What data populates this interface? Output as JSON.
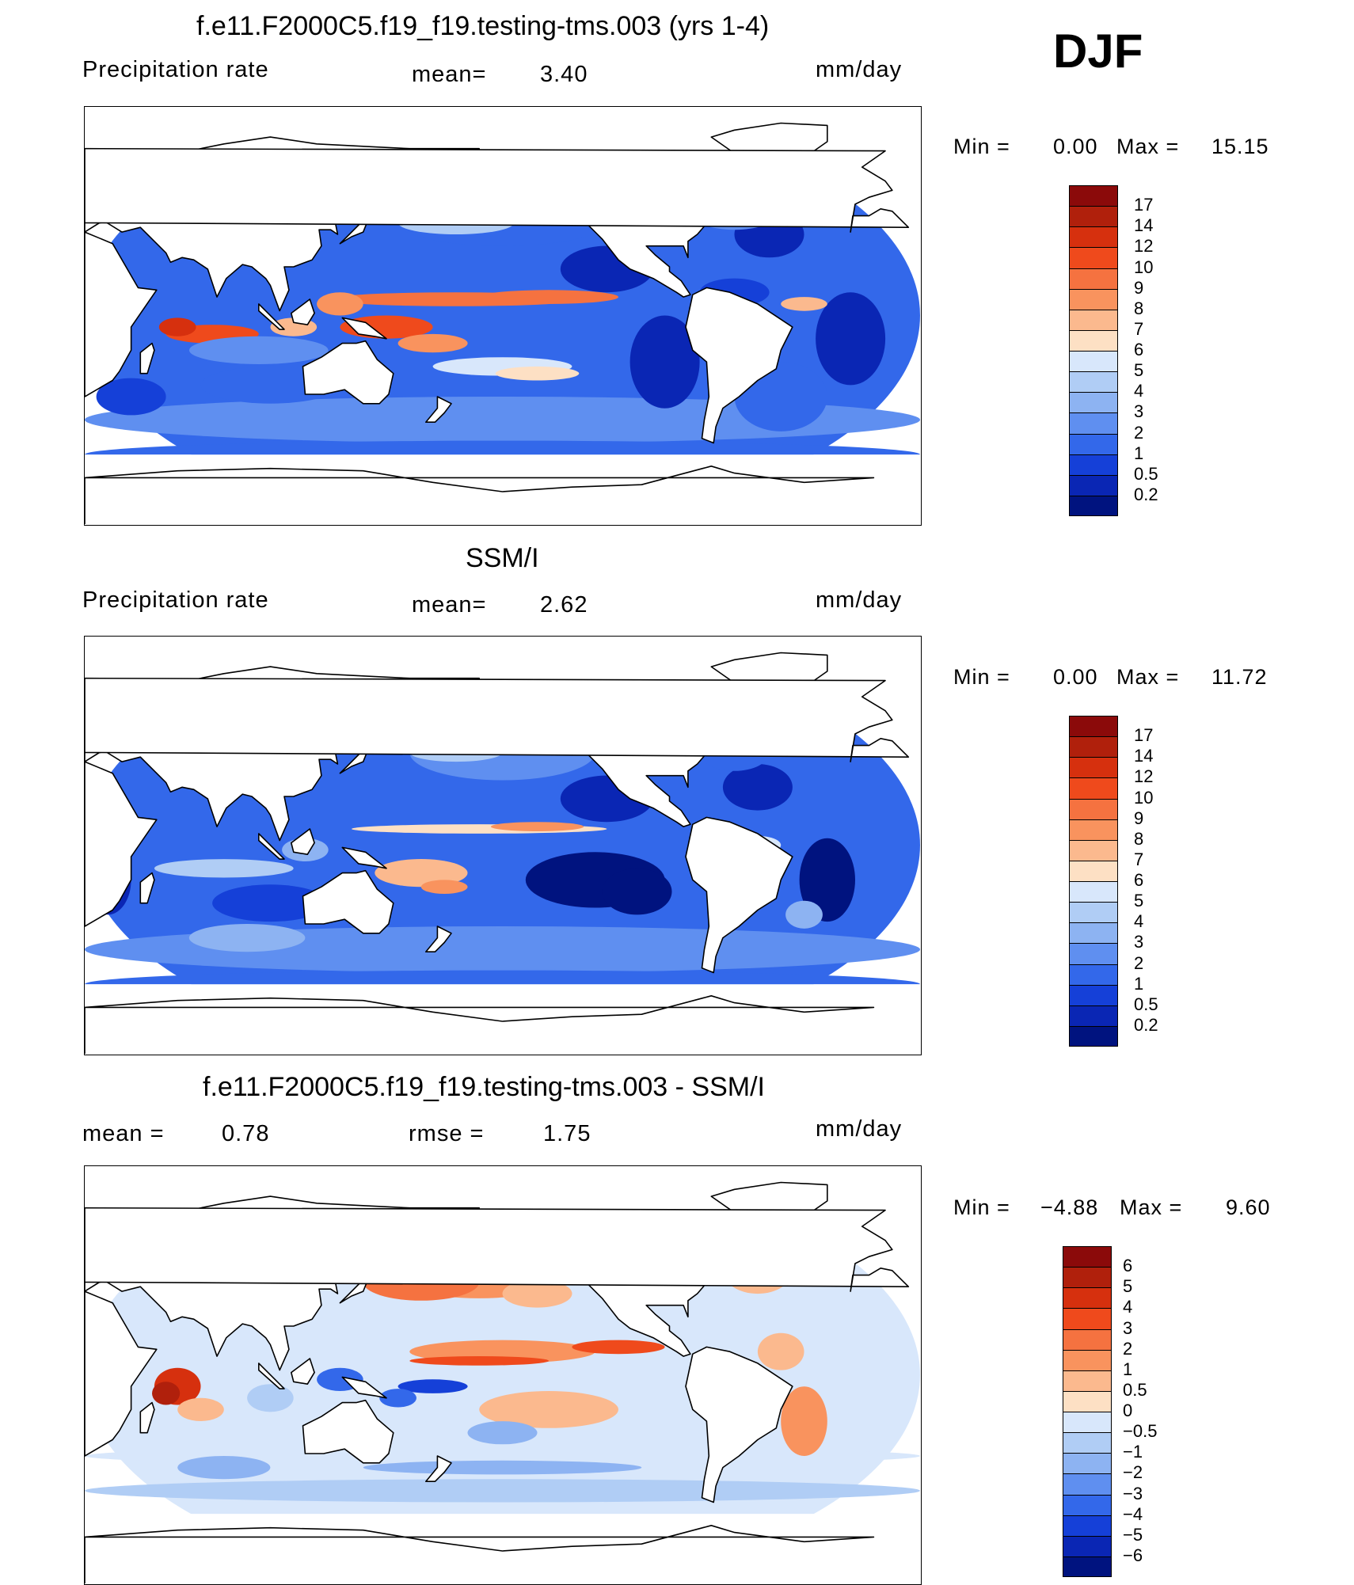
{
  "header": {
    "season": "DJF"
  },
  "panels": [
    {
      "title": "f.e11.F2000C5.f19_f19.testing-tms.003 (yrs 1-4)",
      "left_label": "Precipitation  rate",
      "mid_label": "mean=",
      "mid_value": "3.40",
      "units": "mm/day",
      "min_label": "Min  =",
      "min_value": "0.00",
      "max_label": "Max  =",
      "max_value": "15.15",
      "colorbar": {
        "labels": [
          "17",
          "14",
          "12",
          "10",
          "9",
          "8",
          "7",
          "6",
          "5",
          "4",
          "3",
          "2",
          "1",
          "0.5",
          "0.2"
        ],
        "colors": [
          "#8b0a0a",
          "#b0200c",
          "#d6300e",
          "#ef4a1c",
          "#f57240",
          "#f9935e",
          "#fbb98e",
          "#fde0c4",
          "#d8e7fb",
          "#b0cdf5",
          "#8db3f2",
          "#5f8ff0",
          "#3368ea",
          "#1540d8",
          "#0a26b4",
          "#00137f"
        ]
      },
      "map_style": "model"
    },
    {
      "title": "SSM/I",
      "left_label": "Precipitation  rate",
      "mid_label": "mean=",
      "mid_value": "2.62",
      "units": "mm/day",
      "min_label": "Min  =",
      "min_value": "0.00",
      "max_label": "Max  =",
      "max_value": "11.72",
      "colorbar": {
        "labels": [
          "17",
          "14",
          "12",
          "10",
          "9",
          "8",
          "7",
          "6",
          "5",
          "4",
          "3",
          "2",
          "1",
          "0.5",
          "0.2"
        ],
        "colors": [
          "#8b0a0a",
          "#b0200c",
          "#d6300e",
          "#ef4a1c",
          "#f57240",
          "#f9935e",
          "#fbb98e",
          "#fde0c4",
          "#d8e7fb",
          "#b0cdf5",
          "#8db3f2",
          "#5f8ff0",
          "#3368ea",
          "#1540d8",
          "#0a26b4",
          "#00137f"
        ]
      },
      "map_style": "obs"
    },
    {
      "title": "f.e11.F2000C5.f19_f19.testing-tms.003 - SSM/I",
      "left_label": "mean  =",
      "left_value": "0.78",
      "mid_label": "rmse  =",
      "mid_value": "1.75",
      "units": "mm/day",
      "min_label": "Min  =",
      "min_value": "−4.88",
      "max_label": "Max  =",
      "max_value": "9.60",
      "colorbar": {
        "labels": [
          "6",
          "5",
          "4",
          "3",
          "2",
          "1",
          "0.5",
          "0",
          "−0.5",
          "−1",
          "−2",
          "−3",
          "−4",
          "−5",
          "−6"
        ],
        "colors": [
          "#8b0a0a",
          "#b0200c",
          "#d6300e",
          "#ef4a1c",
          "#f57240",
          "#f9935e",
          "#fbb98e",
          "#fde0c4",
          "#d8e7fb",
          "#b0cdf5",
          "#8db3f2",
          "#5f8ff0",
          "#3368ea",
          "#1540d8",
          "#0a26b4",
          "#00137f"
        ]
      },
      "map_style": "diff"
    }
  ],
  "chart_data": [
    {
      "type": "heatmap",
      "title": "f.e11.F2000C5.f19_f19.testing-tms.003 (yrs 1-4)",
      "variable": "Precipitation  rate",
      "units": "mm/day",
      "mean": 3.4,
      "min": 0.0,
      "max": 15.15,
      "contour_levels": [
        0.2,
        0.5,
        1,
        2,
        3,
        4,
        5,
        6,
        7,
        8,
        9,
        10,
        12,
        14,
        17
      ]
    },
    {
      "type": "heatmap",
      "title": "SSM/I",
      "variable": "Precipitation  rate",
      "units": "mm/day",
      "mean": 2.62,
      "min": 0.0,
      "max": 11.72,
      "contour_levels": [
        0.2,
        0.5,
        1,
        2,
        3,
        4,
        5,
        6,
        7,
        8,
        9,
        10,
        12,
        14,
        17
      ]
    },
    {
      "type": "heatmap",
      "title": "f.e11.F2000C5.f19_f19.testing-tms.003 - SSM/I",
      "units": "mm/day",
      "mean": 0.78,
      "rmse": 1.75,
      "min": -4.88,
      "max": 9.6,
      "contour_levels": [
        -6,
        -5,
        -4,
        -3,
        -2,
        -1,
        -0.5,
        0,
        0.5,
        1,
        2,
        3,
        4,
        5,
        6
      ]
    }
  ]
}
